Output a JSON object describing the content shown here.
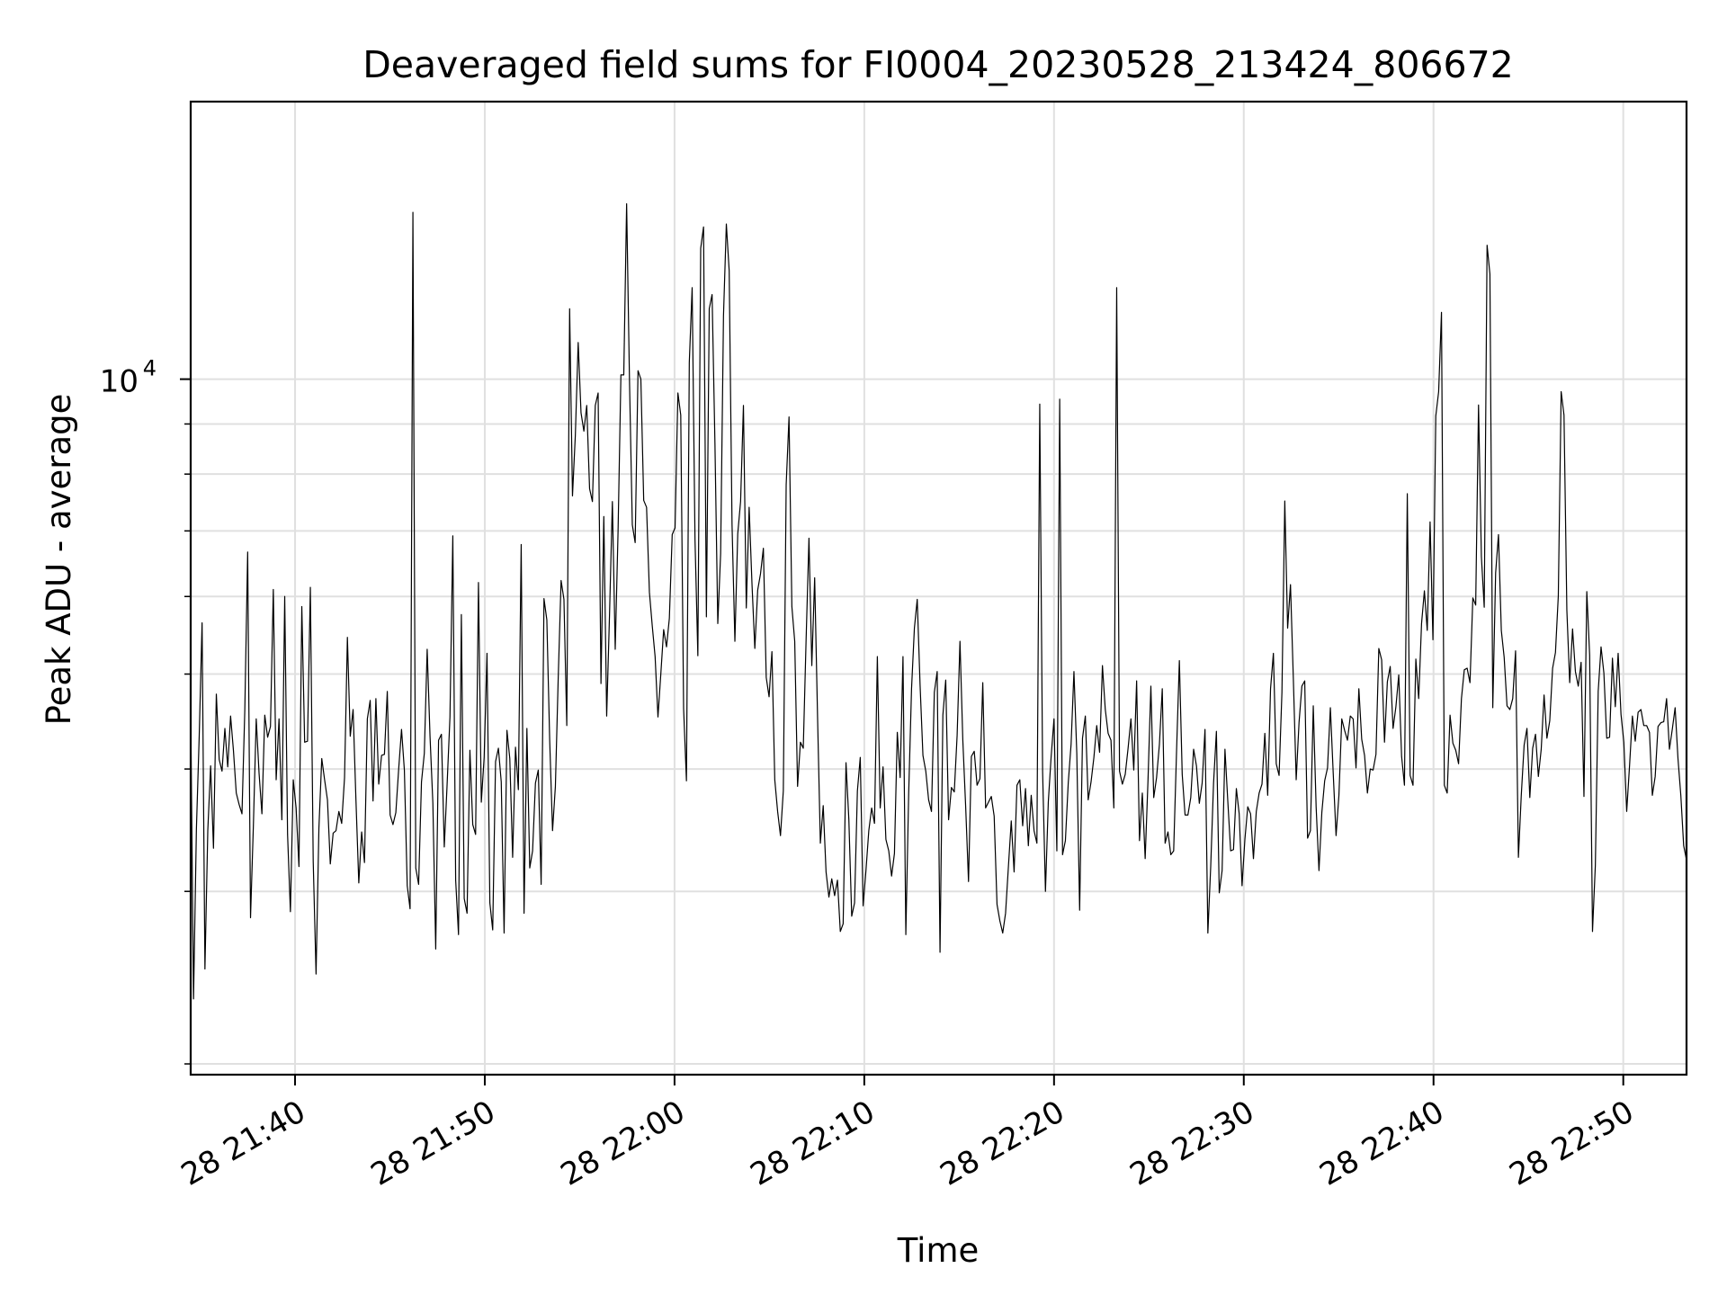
{
  "chart_data": {
    "type": "line",
    "title": "Deaveraged field sums for FI0004_20230528_213424_806672",
    "xlabel": "Time",
    "ylabel": "Peak ADU - average",
    "y_scale": "log",
    "grid": true,
    "line_color": "#000000",
    "grid_color": "#e0e0e0",
    "x_range": [
      "2023-05-28 21:34:30",
      "2023-05-28 22:53:20"
    ],
    "y_range": [
      1950,
      19200
    ],
    "x_ticks": [
      {
        "label": "28 21:40",
        "time": "2023-05-28 21:40"
      },
      {
        "label": "28 21:50",
        "time": "2023-05-28 21:50"
      },
      {
        "label": "28 22:00",
        "time": "2023-05-28 22:00"
      },
      {
        "label": "28 22:10",
        "time": "2023-05-28 22:10"
      },
      {
        "label": "28 22:20",
        "time": "2023-05-28 22:20"
      },
      {
        "label": "28 22:30",
        "time": "2023-05-28 22:30"
      },
      {
        "label": "28 22:40",
        "time": "2023-05-28 22:40"
      },
      {
        "label": "28 22:50",
        "time": "2023-05-28 22:50"
      }
    ],
    "y_major_ticks": [
      {
        "base": "10",
        "exponent": "4",
        "value": 10000
      }
    ],
    "y_minor_ticks": [
      2000,
      3000,
      4000,
      5000,
      6000,
      7000,
      8000,
      9000,
      20000
    ],
    "series": [
      {
        "x_start": "2023-05-28 21:34:30",
        "x_end": "2023-05-28 22:53:20",
        "y": [
          4550,
          2330,
          3470,
          4330,
          5640,
          2500,
          3460,
          4030,
          3320,
          4770,
          4090,
          3980,
          4400,
          4020,
          4530,
          4180,
          3780,
          3680,
          3600,
          4600,
          6660,
          2820,
          3500,
          4500,
          3960,
          3600,
          4540,
          4310,
          4420,
          6100,
          3900,
          4500,
          3550,
          6000,
          3430,
          2860,
          3900,
          3650,
          3180,
          5860,
          4260,
          4270,
          6130,
          3220,
          2470,
          3480,
          4100,
          3900,
          3720,
          3200,
          3440,
          3460,
          3620,
          3520,
          3920,
          5450,
          4320,
          4600,
          3720,
          3060,
          3450,
          3210,
          4500,
          4700,
          3710,
          4720,
          3860,
          4130,
          4140,
          4800,
          3590,
          3510,
          3610,
          4000,
          4390,
          3990,
          3040,
          2880,
          14800,
          3170,
          3050,
          3880,
          4150,
          5300,
          4320,
          3690,
          2620,
          4280,
          4340,
          3330,
          3860,
          4520,
          6920,
          3080,
          2710,
          5750,
          2950,
          2850,
          4180,
          3510,
          3430,
          6200,
          3700,
          4110,
          5250,
          2920,
          2740,
          4070,
          4200,
          3880,
          2720,
          4380,
          4100,
          3250,
          4210,
          3810,
          6780,
          2850,
          4400,
          3170,
          3300,
          3870,
          3990,
          3050,
          5970,
          5680,
          4280,
          3460,
          3840,
          4960,
          6230,
          5960,
          4430,
          11800,
          7600,
          8760,
          10900,
          9240,
          8850,
          9400,
          7730,
          7500,
          9400,
          9680,
          4890,
          7240,
          4530,
          5750,
          7500,
          5300,
          7000,
          10100,
          10100,
          15100,
          10000,
          7100,
          6810,
          10200,
          10000,
          7520,
          7400,
          6060,
          5600,
          5210,
          4520,
          5000,
          5550,
          5330,
          5700,
          6940,
          7050,
          9680,
          9190,
          4610,
          3890,
          10400,
          12400,
          6860,
          5220,
          13600,
          14300,
          5720,
          11800,
          12200,
          8600,
          5630,
          6640,
          11600,
          14400,
          12900,
          7100,
          5400,
          6950,
          7500,
          9400,
          5840,
          7400,
          6180,
          5310,
          6090,
          6330,
          6720,
          4960,
          4740,
          5270,
          3900,
          3620,
          3420,
          3800,
          7800,
          9150,
          5860,
          5400,
          3840,
          4260,
          4200,
          5430,
          6880,
          5100,
          6270,
          4540,
          3360,
          3670,
          3140,
          2960,
          3090,
          2970,
          3080,
          2730,
          2780,
          4060,
          3550,
          2830,
          2920,
          3800,
          4110,
          2900,
          3150,
          3460,
          3650,
          3520,
          5210,
          3650,
          4020,
          3390,
          3300,
          3110,
          3280,
          4360,
          3920,
          5210,
          2710,
          3780,
          4830,
          5570,
          5960,
          4870,
          4130,
          3980,
          3720,
          3620,
          4790,
          5030,
          2600,
          4540,
          4930,
          3550,
          3830,
          3790,
          4330,
          5400,
          4280,
          3660,
          3070,
          4120,
          4170,
          3850,
          3910,
          4900,
          3650,
          3700,
          3750,
          3580,
          2910,
          2800,
          2720,
          2850,
          3180,
          3540,
          3140,
          3850,
          3900,
          3500,
          3820,
          3340,
          3760,
          3460,
          3360,
          9430,
          3980,
          3000,
          3700,
          4120,
          4500,
          3300,
          9540,
          3270,
          3380,
          3870,
          4240,
          5030,
          4150,
          2870,
          4300,
          4530,
          3720,
          3880,
          4110,
          4430,
          4160,
          5100,
          4600,
          4350,
          4280,
          3650,
          12400,
          3980,
          3860,
          3950,
          4200,
          4500,
          3990,
          4920,
          3380,
          3780,
          3240,
          3900,
          4860,
          3740,
          3920,
          4240,
          4830,
          3360,
          3450,
          3270,
          3300,
          4160,
          5160,
          3950,
          3590,
          3590,
          3740,
          4190,
          4030,
          3690,
          3870,
          4390,
          2720,
          3180,
          3870,
          4370,
          2990,
          3150,
          4190,
          3710,
          3300,
          3310,
          3820,
          3600,
          3040,
          3390,
          3660,
          3600,
          3240,
          3620,
          3780,
          3860,
          4350,
          3760,
          4830,
          5250,
          4050,
          3940,
          4790,
          7510,
          5570,
          6170,
          4950,
          3900,
          4460,
          4860,
          4920,
          3400,
          3460,
          4640,
          3660,
          3150,
          3610,
          3890,
          4010,
          4620,
          3960,
          3420,
          3760,
          4500,
          4380,
          4280,
          4530,
          4500,
          4010,
          4830,
          4290,
          4130,
          3780,
          4000,
          3990,
          4140,
          5310,
          5170,
          4260,
          4910,
          5090,
          4400,
          4630,
          4990,
          4120,
          3850,
          7640,
          3940,
          3850,
          5180,
          4720,
          5630,
          6080,
          5540,
          7150,
          5420,
          9170,
          9710,
          11700,
          3850,
          3780,
          4540,
          4250,
          4180,
          4050,
          4720,
          5050,
          5070,
          4900,
          5980,
          5880,
          9410,
          6590,
          5850,
          13700,
          12800,
          4620,
          6340,
          6940,
          5540,
          5200,
          4640,
          4600,
          4720,
          5280,
          3250,
          3760,
          4230,
          4400,
          3740,
          4200,
          4340,
          3930,
          4190,
          4760,
          4300,
          4480,
          5070,
          5260,
          6010,
          9710,
          9190,
          5810,
          4900,
          5560,
          5030,
          4860,
          5140,
          3750,
          6070,
          5230,
          2730,
          3190,
          4800,
          5330,
          5010,
          4300,
          4310,
          5190,
          4630,
          5250,
          4550,
          4260,
          3620,
          4030,
          4530,
          4270,
          4570,
          4600,
          4430,
          4430,
          4360,
          3760,
          3930,
          4420,
          4460,
          4470,
          4720,
          4190,
          4390,
          4620,
          4100,
          3760,
          3340,
          3230
        ]
      }
    ]
  }
}
